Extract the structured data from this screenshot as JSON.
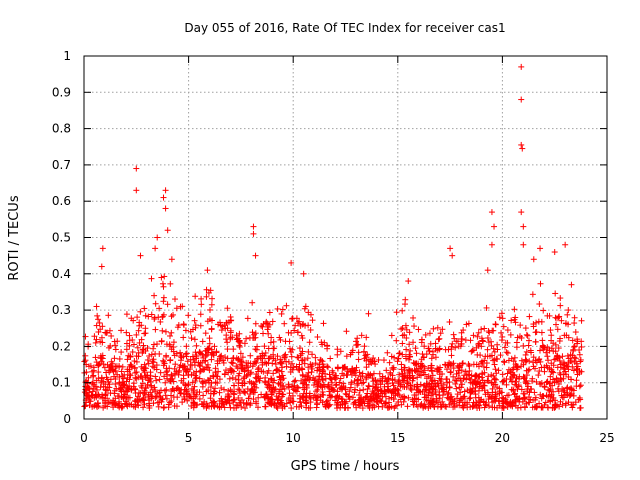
{
  "chart_data": {
    "type": "scatter",
    "title": "Day 055 of 2016, Rate Of TEC Index for receiver cas1",
    "xlabel": "GPS time / hours",
    "ylabel": "ROTI / TECUs",
    "xlim": [
      0,
      25
    ],
    "ylim": [
      0,
      1
    ],
    "xticks": [
      0,
      5,
      10,
      15,
      20,
      25
    ],
    "xtick_labels": [
      "0",
      "5",
      "10",
      "15",
      "20",
      "25"
    ],
    "yticks": [
      0,
      0.1,
      0.2,
      0.3,
      0.4,
      0.5,
      0.6,
      0.7,
      0.8,
      0.9,
      1
    ],
    "ytick_labels": [
      "0",
      "0.1",
      "0.2",
      "0.3",
      "0.4",
      "0.5",
      "0.6",
      "0.7",
      "0.8",
      "0.9",
      "1"
    ],
    "grid": true,
    "marker": "+",
    "marker_color": "#ff0000",
    "series": [
      {
        "name": "ROTI",
        "x_range": [
          0.0,
          23.8
        ],
        "envelope_x": [
          0,
          0.5,
          1,
          1.5,
          2,
          2.5,
          3,
          3.5,
          4,
          4.5,
          5,
          5.5,
          6,
          6.5,
          7,
          7.5,
          8,
          8.5,
          9,
          9.5,
          10,
          10.5,
          11,
          11.5,
          12,
          12.5,
          13,
          13.5,
          14,
          14.5,
          15,
          15.5,
          16,
          16.5,
          17,
          17.5,
          18,
          18.5,
          19,
          19.5,
          20,
          20.5,
          21,
          21.5,
          22,
          22.5,
          23,
          23.5,
          23.8
        ],
        "envelope_typical_max": [
          0.24,
          0.27,
          0.3,
          0.25,
          0.26,
          0.32,
          0.33,
          0.38,
          0.36,
          0.32,
          0.3,
          0.33,
          0.34,
          0.3,
          0.27,
          0.28,
          0.3,
          0.31,
          0.28,
          0.3,
          0.32,
          0.3,
          0.26,
          0.24,
          0.22,
          0.23,
          0.22,
          0.21,
          0.16,
          0.17,
          0.3,
          0.3,
          0.26,
          0.22,
          0.24,
          0.25,
          0.26,
          0.25,
          0.26,
          0.3,
          0.27,
          0.28,
          0.3,
          0.33,
          0.35,
          0.34,
          0.3,
          0.3,
          0.26
        ],
        "notable_points": [
          {
            "x": 0.6,
            "y": 0.31
          },
          {
            "x": 0.9,
            "y": 0.47
          },
          {
            "x": 0.85,
            "y": 0.42
          },
          {
            "x": 2.5,
            "y": 0.69
          },
          {
            "x": 2.5,
            "y": 0.63
          },
          {
            "x": 2.7,
            "y": 0.45
          },
          {
            "x": 3.5,
            "y": 0.5
          },
          {
            "x": 3.4,
            "y": 0.47
          },
          {
            "x": 3.9,
            "y": 0.63
          },
          {
            "x": 3.8,
            "y": 0.61
          },
          {
            "x": 3.9,
            "y": 0.58
          },
          {
            "x": 4.0,
            "y": 0.52
          },
          {
            "x": 4.2,
            "y": 0.44
          },
          {
            "x": 5.9,
            "y": 0.41
          },
          {
            "x": 8.1,
            "y": 0.53
          },
          {
            "x": 8.1,
            "y": 0.51
          },
          {
            "x": 8.2,
            "y": 0.45
          },
          {
            "x": 9.9,
            "y": 0.43
          },
          {
            "x": 10.5,
            "y": 0.4
          },
          {
            "x": 13.6,
            "y": 0.29
          },
          {
            "x": 15.5,
            "y": 0.38
          },
          {
            "x": 17.5,
            "y": 0.47
          },
          {
            "x": 17.6,
            "y": 0.45
          },
          {
            "x": 19.3,
            "y": 0.41
          },
          {
            "x": 19.5,
            "y": 0.57
          },
          {
            "x": 19.6,
            "y": 0.53
          },
          {
            "x": 19.5,
            "y": 0.48
          },
          {
            "x": 20.9,
            "y": 0.97
          },
          {
            "x": 20.9,
            "y": 0.88
          },
          {
            "x": 20.9,
            "y": 0.755
          },
          {
            "x": 20.95,
            "y": 0.745
          },
          {
            "x": 20.9,
            "y": 0.57
          },
          {
            "x": 21.0,
            "y": 0.53
          },
          {
            "x": 21.0,
            "y": 0.48
          },
          {
            "x": 21.5,
            "y": 0.44
          },
          {
            "x": 21.8,
            "y": 0.47
          },
          {
            "x": 22.5,
            "y": 0.46
          },
          {
            "x": 23.0,
            "y": 0.48
          },
          {
            "x": 23.3,
            "y": 0.37
          }
        ]
      }
    ]
  }
}
